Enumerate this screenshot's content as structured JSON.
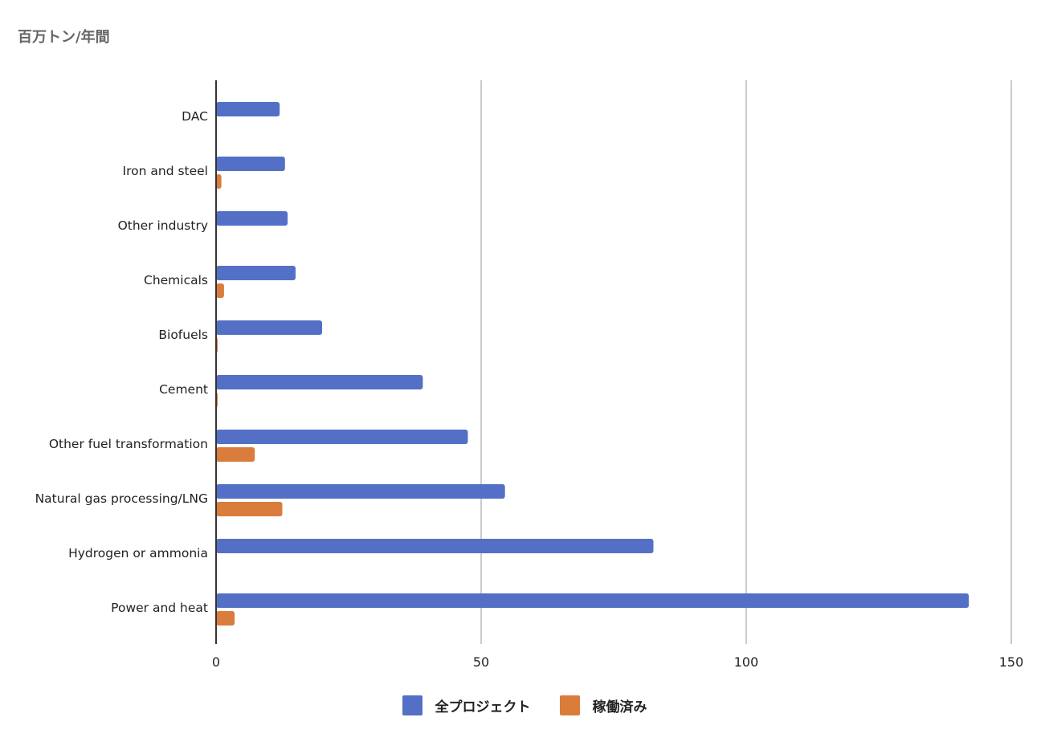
{
  "unit_label": "百万トン/年間",
  "chart_data": {
    "type": "bar",
    "orientation": "horizontal",
    "title": "",
    "xlabel": "",
    "ylabel": "百万トン/年間",
    "xlim": [
      0,
      150
    ],
    "x_ticks": [
      0,
      50,
      100,
      150
    ],
    "grid": true,
    "legend_position": "bottom",
    "categories": [
      "DAC",
      "Iron and steel",
      "Other industry",
      "Chemicals",
      "Biofuels",
      "Cement",
      "Other fuel transformation",
      "Natural gas processing/LNG",
      "Hydrogen or ammonia",
      "Power and heat"
    ],
    "series": [
      {
        "name": "全プロジェクト",
        "color": "#5470c6",
        "values": [
          12,
          13,
          13.5,
          15,
          20,
          39,
          47.5,
          54.5,
          82.5,
          142
        ]
      },
      {
        "name": "稼働済み",
        "color": "#d97c3c",
        "values": [
          0,
          1,
          0,
          1.5,
          0.3,
          0.3,
          7.3,
          12.5,
          0,
          3.5
        ]
      }
    ]
  }
}
